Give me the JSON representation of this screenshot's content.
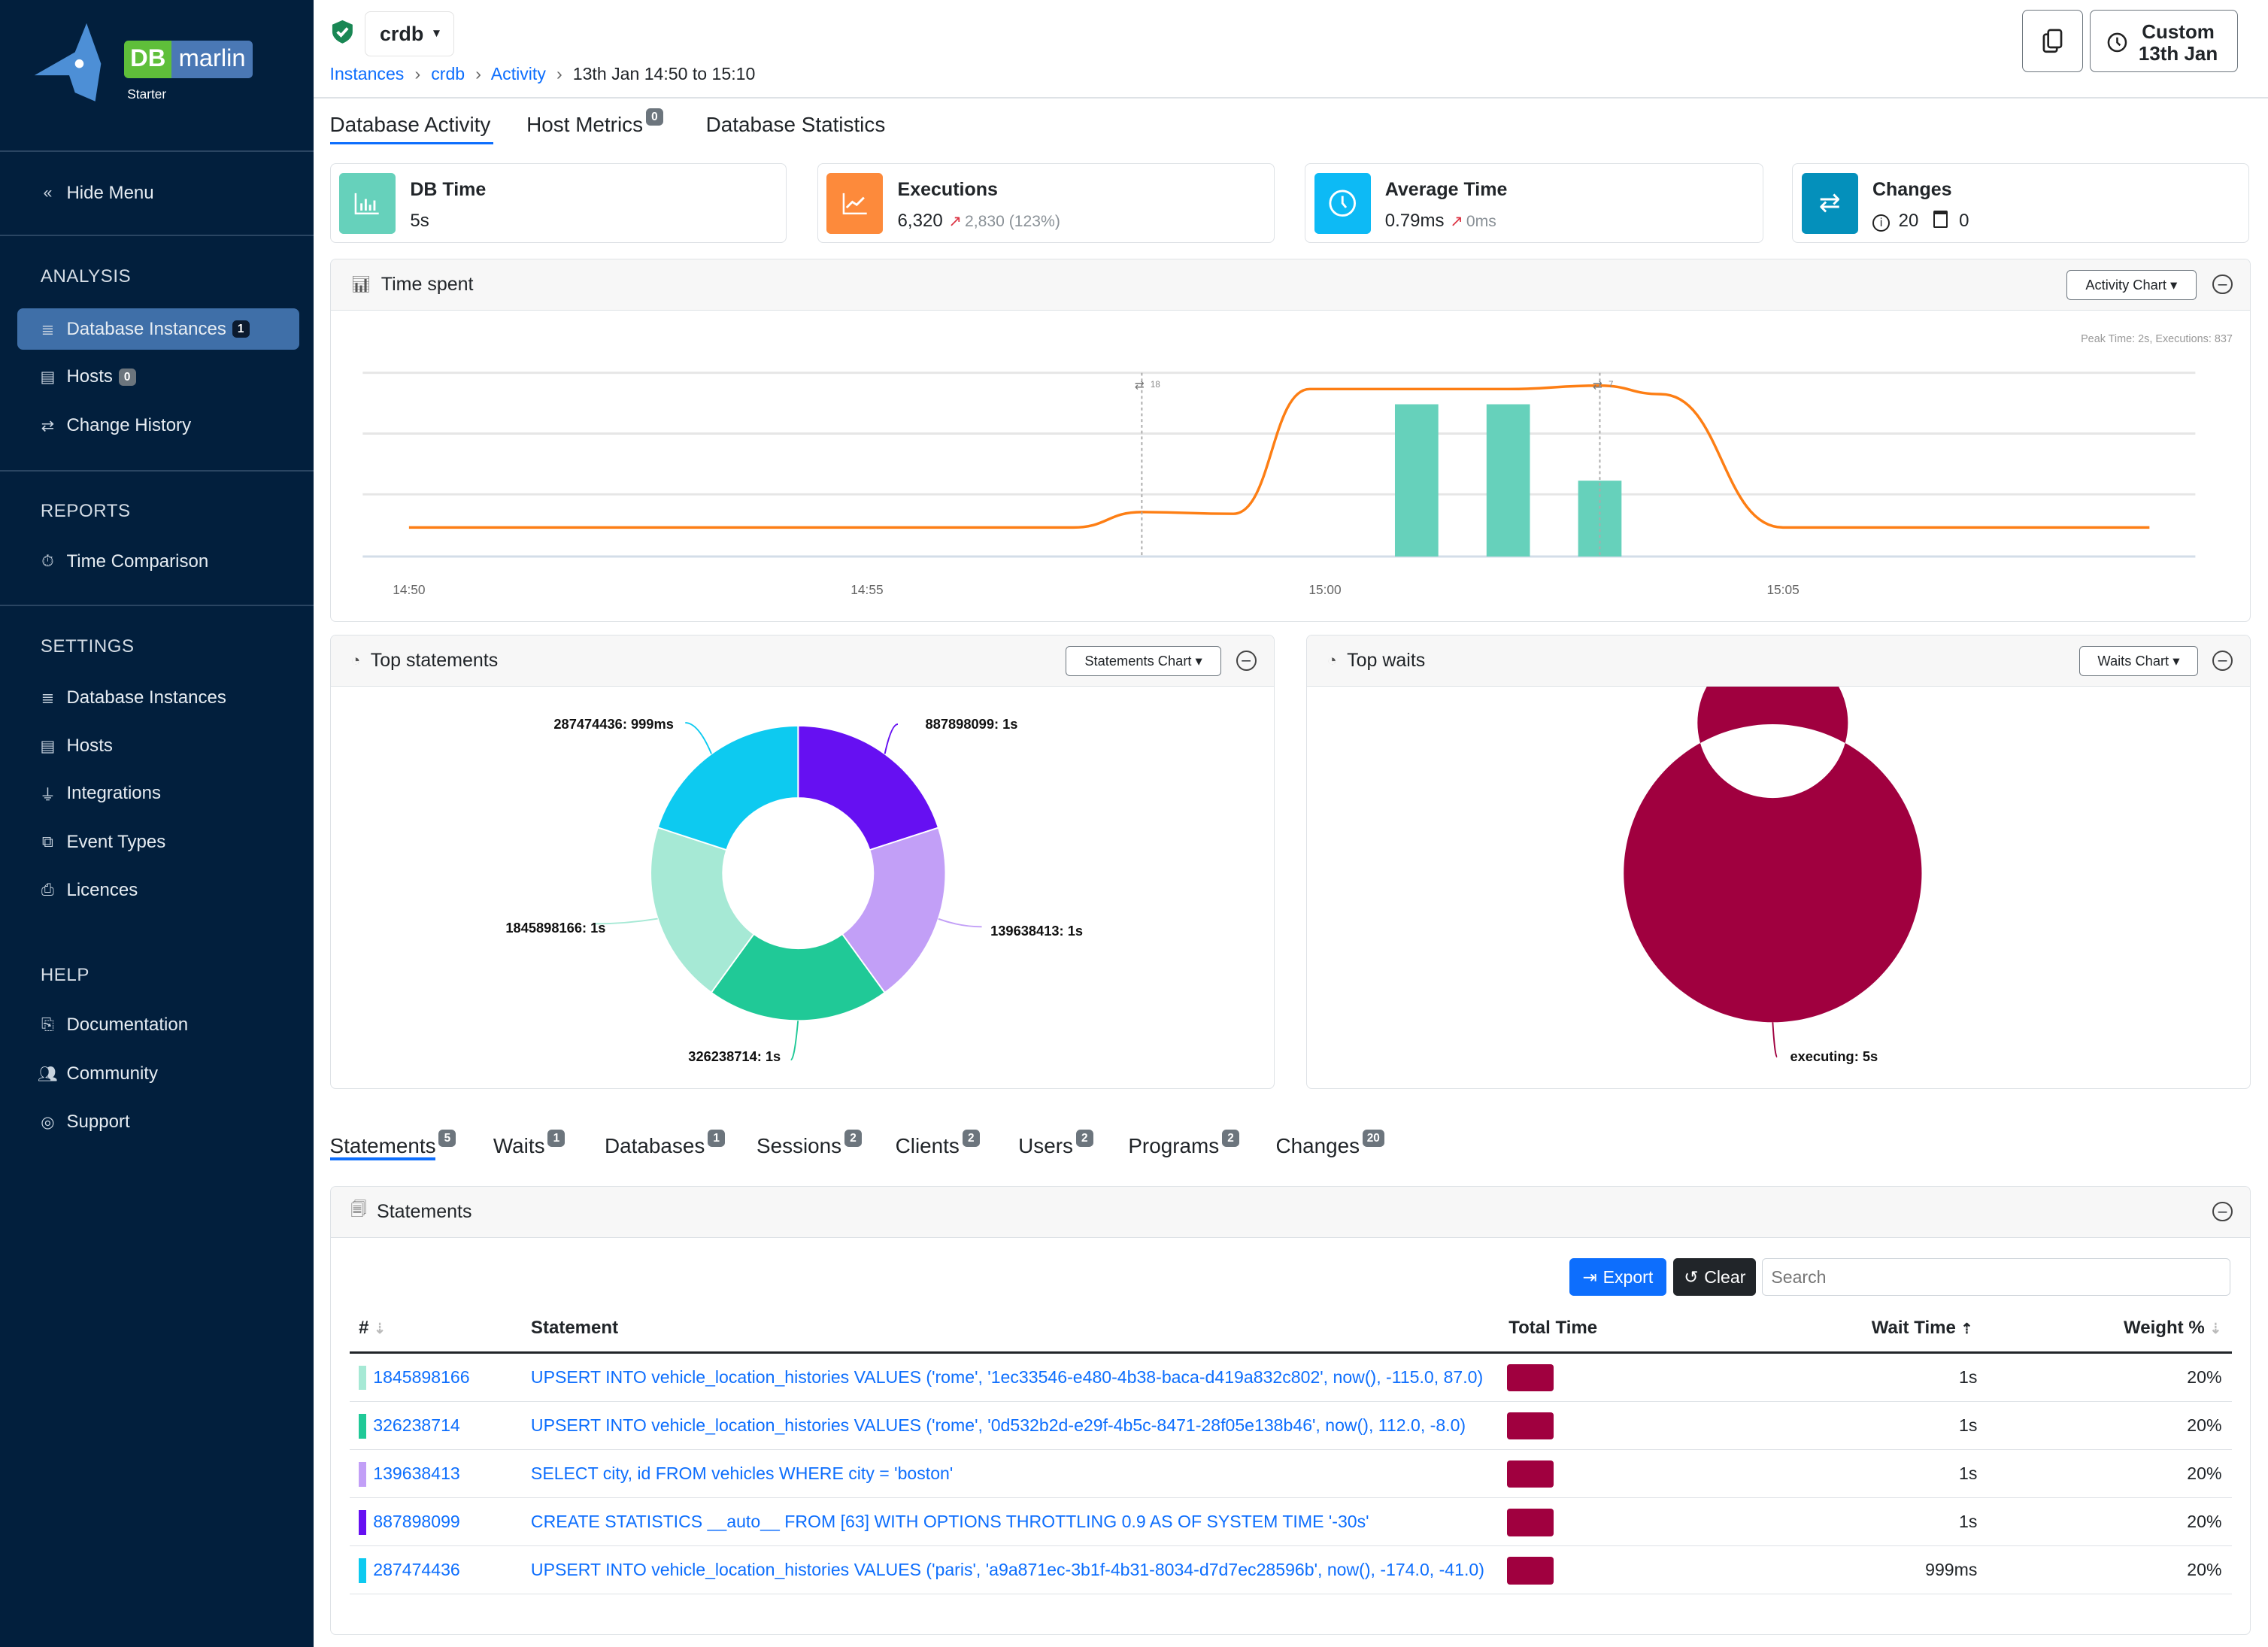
{
  "brand": {
    "logo_text_1": "DB",
    "logo_text_2": "marlin",
    "edition": "Starter"
  },
  "sidebar": {
    "hide_menu": "Hide Menu",
    "sections": [
      {
        "title": "ANALYSIS",
        "items": [
          {
            "label": "Database Instances",
            "badge": "1",
            "active": true
          },
          {
            "label": "Hosts",
            "badge": "0"
          },
          {
            "label": "Change History"
          }
        ]
      },
      {
        "title": "REPORTS",
        "items": [
          {
            "label": "Time Comparison"
          }
        ]
      },
      {
        "title": "SETTINGS",
        "items": [
          {
            "label": "Database Instances"
          },
          {
            "label": "Hosts"
          },
          {
            "label": "Integrations"
          },
          {
            "label": "Event Types"
          },
          {
            "label": "Licences"
          }
        ]
      },
      {
        "title": "HELP",
        "items": [
          {
            "label": "Documentation"
          },
          {
            "label": "Community"
          },
          {
            "label": "Support"
          }
        ]
      }
    ]
  },
  "header": {
    "instance": "crdb",
    "breadcrumb": [
      "Instances",
      "crdb",
      "Activity"
    ],
    "breadcrumb_current": "13th Jan 14:50 to 15:10",
    "time_button_line1": "Custom",
    "time_button_line2": "13th Jan"
  },
  "tabs": [
    {
      "label": "Database Activity",
      "active": true
    },
    {
      "label": "Host Metrics",
      "badge": "0"
    },
    {
      "label": "Database Statistics"
    }
  ],
  "cards": {
    "db_time": {
      "title": "DB Time",
      "value": "5s",
      "color": "#66d1bb"
    },
    "executions": {
      "title": "Executions",
      "value": "6,320",
      "delta": "2,830 (123%)",
      "color": "#fd8a3b"
    },
    "average_time": {
      "title": "Average Time",
      "value": "0.79ms",
      "delta": "0ms",
      "color": "#0dbaf5"
    },
    "changes": {
      "title": "Changes",
      "info_count": "20",
      "calendar_count": "0",
      "color": "#0490bb"
    }
  },
  "time_spent": {
    "title": "Time spent",
    "dropdown": "Activity Chart",
    "peak_text": "Peak Time: 2s, Executions: 837"
  },
  "top_statements": {
    "title": "Top statements",
    "dropdown": "Statements Chart"
  },
  "top_waits": {
    "title": "Top waits",
    "dropdown": "Waits Chart"
  },
  "chart_data": [
    {
      "type": "line",
      "title": "Time spent",
      "x_ticks": [
        "14:50",
        "14:55",
        "15:00",
        "15:05"
      ],
      "xlim": [
        "14:49:30",
        "15:09:30"
      ],
      "grid": true,
      "series": [
        {
          "kind": "line",
          "color": "#fd7e14",
          "ylim": [
            0,
            2.15
          ],
          "points": [
            [
              "14:50:00",
              0.34
            ],
            [
              "14:53:00",
              0.34
            ],
            [
              "14:57:15",
              0.34
            ],
            [
              "14:58:00",
              0.52
            ],
            [
              "14:59:00",
              0.5
            ],
            [
              "14:59:50",
              1.96
            ],
            [
              "15:02:00",
              1.96
            ],
            [
              "15:03:00",
              2.0
            ],
            [
              "15:03:40",
              1.9
            ],
            [
              "15:05:00",
              0.34
            ],
            [
              "15:09:00",
              0.34
            ]
          ]
        },
        {
          "kind": "bar",
          "color": "#66d1bb",
          "ylim": [
            0,
            1010
          ],
          "points": [
            [
              "15:01",
              837
            ],
            [
              "15:02",
              837
            ],
            [
              "15:03",
              417
            ]
          ]
        }
      ],
      "markers": [
        {
          "time": "14:58",
          "label": "18"
        },
        {
          "time": "15:03",
          "label": "7"
        }
      ]
    },
    {
      "type": "pie",
      "donut": true,
      "title": "Top statements",
      "slices": [
        {
          "label": "887898099: 1s",
          "value": 1000,
          "color": "#6610f2"
        },
        {
          "label": "139638413: 1s",
          "value": 1000,
          "color": "#c29ff7"
        },
        {
          "label": "326238714: 1s",
          "value": 1000,
          "color": "#20c997"
        },
        {
          "label": "1845898166: 1s",
          "value": 1000,
          "color": "#a6e9d5"
        },
        {
          "label": "287474436: 999ms",
          "value": 999,
          "color": "#0dcaf0"
        }
      ]
    },
    {
      "type": "pie",
      "donut": true,
      "title": "Top waits",
      "slices": [
        {
          "label": "executing: 5s",
          "value": 5,
          "color": "#a0003f"
        }
      ]
    }
  ],
  "bottom_tabs": [
    {
      "label": "Statements",
      "badge": "5",
      "active": true
    },
    {
      "label": "Waits",
      "badge": "1"
    },
    {
      "label": "Databases",
      "badge": "1"
    },
    {
      "label": "Sessions",
      "badge": "2"
    },
    {
      "label": "Clients",
      "badge": "2"
    },
    {
      "label": "Users",
      "badge": "2"
    },
    {
      "label": "Programs",
      "badge": "2"
    },
    {
      "label": "Changes",
      "badge": "20"
    }
  ],
  "statements": {
    "title": "Statements",
    "export": "Export",
    "clear": "Clear",
    "search_placeholder": "Search",
    "columns": [
      "#",
      "Statement",
      "Total Time",
      "Wait Time",
      "Weight %"
    ],
    "rows": [
      {
        "id": "1845898166",
        "color": "#a6e9d5",
        "statement": "UPSERT INTO vehicle_location_histories VALUES ('rome', '1ec33546-e480-4b38-baca-d419a832c802', now(), -115.0, 87.0)",
        "wait": "1s",
        "weight": "20%"
      },
      {
        "id": "326238714",
        "color": "#20c997",
        "statement": "UPSERT INTO vehicle_location_histories VALUES ('rome', '0d532b2d-e29f-4b5c-8471-28f05e138b46', now(), 112.0, -8.0)",
        "wait": "1s",
        "weight": "20%"
      },
      {
        "id": "139638413",
        "color": "#c29ff7",
        "statement": "SELECT city, id FROM vehicles WHERE city = 'boston'",
        "wait": "1s",
        "weight": "20%"
      },
      {
        "id": "887898099",
        "color": "#6610f2",
        "statement": "CREATE STATISTICS __auto__ FROM [63] WITH OPTIONS THROTTLING 0.9 AS OF SYSTEM TIME '-30s'",
        "wait": "1s",
        "weight": "20%"
      },
      {
        "id": "287474436",
        "color": "#0dcaf0",
        "statement": "UPSERT INTO vehicle_location_histories VALUES ('paris', 'a9a871ec-3b1f-4b31-8034-d7d7ec28596b', now(), -174.0, -41.0)",
        "wait": "999ms",
        "weight": "20%"
      }
    ]
  }
}
